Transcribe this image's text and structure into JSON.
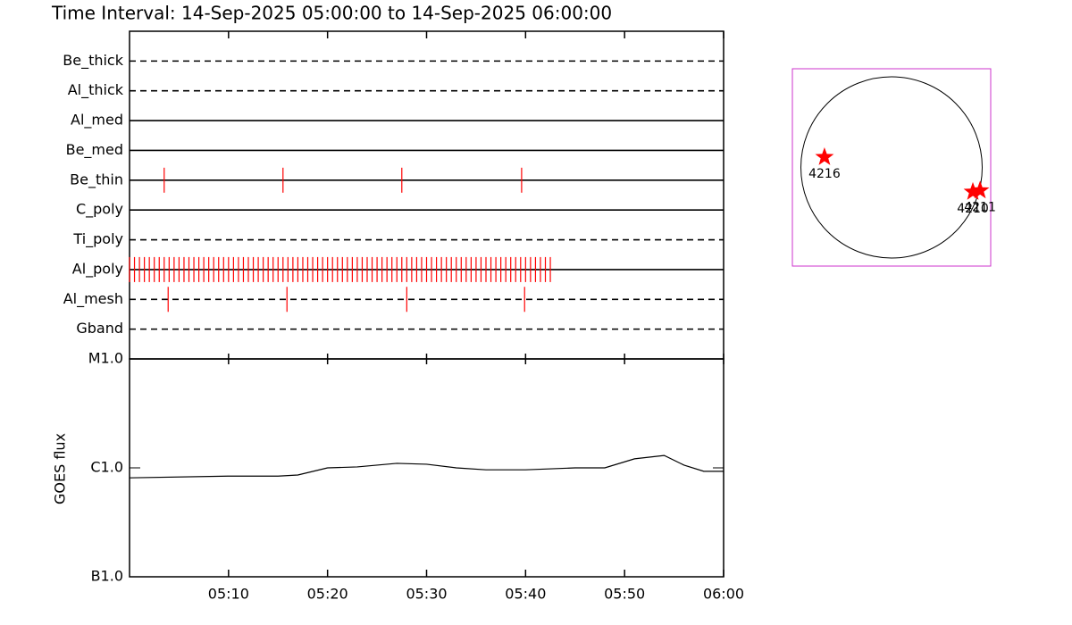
{
  "chart_data": [
    {
      "type": "event",
      "title": "Time Interval: 14-Sep-2025 05:00:00 to 14-Sep-2025 06:00:00",
      "categories": [
        "Be_thick",
        "Al_thick",
        "Al_med",
        "Be_med",
        "Be_thin",
        "C_poly",
        "Ti_poly",
        "Al_poly",
        "Al_mesh",
        "Gband"
      ],
      "line_styles": [
        "dashed",
        "dashed",
        "solid",
        "solid",
        "solid",
        "solid",
        "dashed",
        "solid",
        "dashed",
        "dashed"
      ],
      "events": [
        [],
        [],
        [],
        [],
        [
          3.5,
          15.5,
          27.5,
          39.6
        ],
        [],
        [],
        [
          0,
          0.5,
          1,
          1.5,
          2,
          2.5,
          3,
          3.5,
          4,
          4.5,
          5,
          5.5,
          6,
          6.5,
          7,
          7.5,
          8,
          8.5,
          9,
          9.5,
          10,
          10.5,
          11,
          11.5,
          12,
          12.5,
          13,
          13.5,
          14,
          14.5,
          15,
          15.5,
          16,
          16.5,
          17,
          17.5,
          18,
          18.5,
          19,
          19.5,
          20,
          20.5,
          21,
          21.5,
          22,
          22.5,
          23,
          23.5,
          24,
          24.5,
          25,
          25.5,
          26,
          26.5,
          27,
          27.5,
          28,
          28.5,
          29,
          29.5,
          30,
          30.5,
          31,
          31.5,
          32,
          32.5,
          33,
          33.5,
          34,
          34.5,
          35,
          35.5,
          36,
          36.5,
          37,
          37.5,
          38,
          38.5,
          39,
          39.5,
          40,
          40.5,
          41,
          41.5,
          42,
          42.5
        ],
        [
          3.9,
          15.9,
          28.0,
          39.9
        ],
        []
      ],
      "color": "#ff0000",
      "xlim": [
        0,
        60
      ]
    },
    {
      "type": "line",
      "ylabel": "GOES flux",
      "x": [
        0,
        10,
        15,
        17,
        20,
        23,
        25,
        27,
        30,
        33,
        36,
        40,
        45,
        48,
        51,
        54,
        56,
        58,
        60
      ],
      "values": [
        8.1e-07,
        8.4e-07,
        8.4e-07,
        8.6e-07,
        1e-06,
        1.02e-06,
        1.06e-06,
        1.1e-06,
        1.08e-06,
        1e-06,
        9.6e-07,
        9.6e-07,
        1e-06,
        1e-06,
        1.21e-06,
        1.3e-06,
        1.06e-06,
        9.3e-07,
        9.3e-07
      ],
      "color": "#000000",
      "log_y": true,
      "ylim": [
        1e-07,
        1e-05
      ],
      "yticks": [
        {
          "value": 1e-07,
          "label": "B1.0"
        },
        {
          "value": 1e-06,
          "label": "C1.0"
        },
        {
          "value": 1e-05,
          "label": "M1.0"
        }
      ],
      "xlim": [
        0,
        60
      ],
      "xticks": [
        {
          "value": 10,
          "label": "05:10"
        },
        {
          "value": 20,
          "label": "05:20"
        },
        {
          "value": 30,
          "label": "05:30"
        },
        {
          "value": 40,
          "label": "05:40"
        },
        {
          "value": 50,
          "label": "05:50"
        },
        {
          "value": 60,
          "label": "06:00"
        }
      ]
    },
    {
      "type": "scatter",
      "x": [
        -710,
        861,
        937
      ],
      "y": [
        109,
        -260,
        -246
      ],
      "labels": [
        "4216",
        "4210",
        "4211"
      ],
      "color": "#ff0000",
      "frame_color": "#cc33cc",
      "disk_radius": 960,
      "xlim": [
        -1050,
        1050
      ],
      "ylim": [
        -1050,
        1050
      ]
    }
  ]
}
